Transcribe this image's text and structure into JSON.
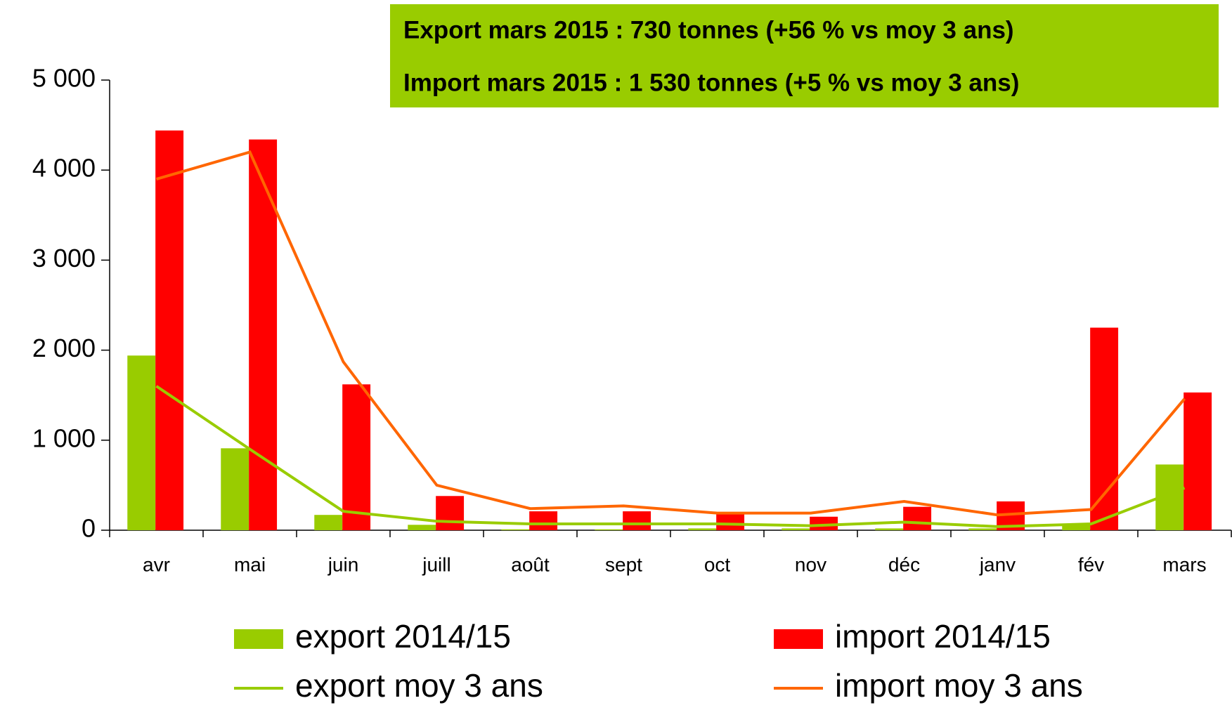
{
  "chart_data": {
    "type": "bar",
    "annotations": [
      "Export mars 2015 : 730 tonnes (+56 % vs moy 3 ans)",
      "Import mars 2015 : 1 530 tonnes (+5 % vs moy 3 ans)"
    ],
    "annotation_color": "#99cc00",
    "categories": [
      "avr",
      "mai",
      "juin",
      "juill",
      "août",
      "sept",
      "oct",
      "nov",
      "déc",
      "janv",
      "fév",
      "mars"
    ],
    "series": [
      {
        "name": "export 2014/15",
        "kind": "bar",
        "color": "#99cc00",
        "values": [
          1940,
          910,
          170,
          60,
          10,
          10,
          20,
          20,
          20,
          20,
          70,
          730
        ]
      },
      {
        "name": "import 2014/15",
        "kind": "bar",
        "color": "#ff0000",
        "values": [
          4440,
          4340,
          1620,
          380,
          210,
          210,
          180,
          150,
          260,
          320,
          2250,
          1530
        ]
      },
      {
        "name": "export moy 3 ans",
        "kind": "line",
        "color": "#99cc00",
        "values": [
          1600,
          900,
          210,
          100,
          70,
          70,
          70,
          50,
          90,
          40,
          70,
          470
        ]
      },
      {
        "name": "import moy 3 ans",
        "kind": "line",
        "color": "#ff6600",
        "values": [
          3900,
          4200,
          1870,
          500,
          240,
          270,
          190,
          190,
          320,
          170,
          230,
          1460
        ]
      }
    ],
    "ylim": [
      0,
      5000
    ],
    "yticks": [
      0,
      {
        "value": 1000,
        "label": "1 000"
      },
      {
        "value": 2000,
        "label": "2 000"
      },
      {
        "value": 3000,
        "label": "3 000"
      },
      {
        "value": 4000,
        "label": "4 000"
      },
      {
        "value": 5000,
        "label": "5 000"
      }
    ]
  }
}
